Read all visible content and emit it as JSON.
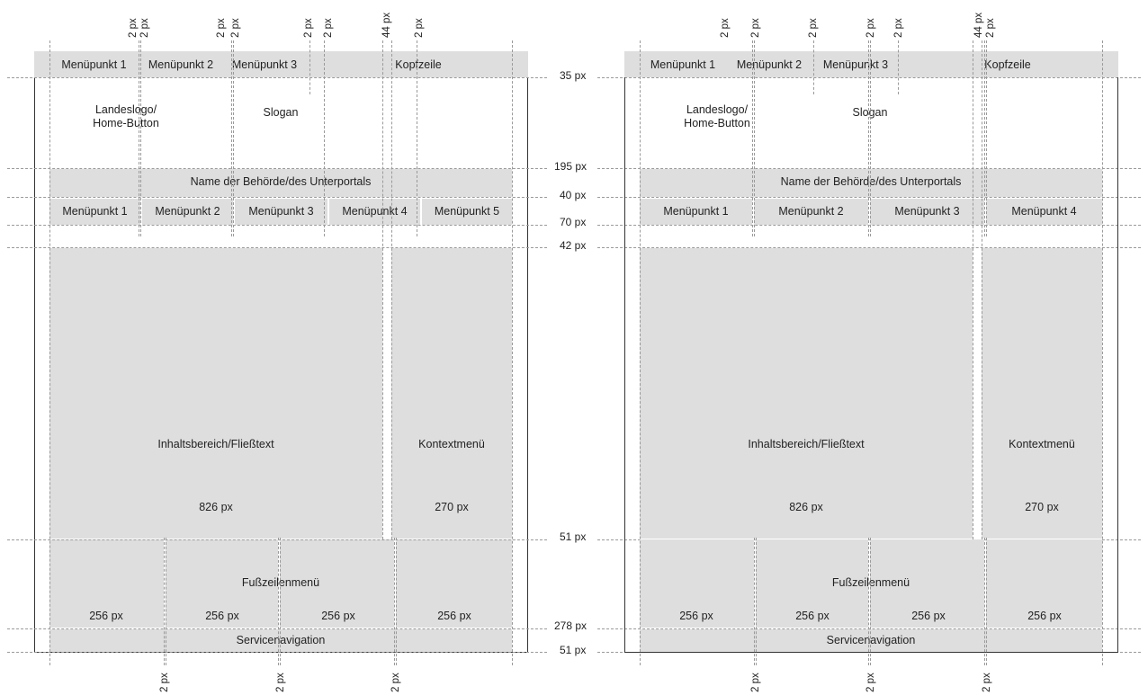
{
  "left": {
    "top_menu": [
      "Menüpunkt 1",
      "Menüpunkt 2",
      "Menüpunkt 3"
    ],
    "header": "Kopfzeile",
    "logo": [
      "Landeslogo/",
      "Home-Button"
    ],
    "slogan": "Slogan",
    "authority": "Name der Behörde/des Unterportals",
    "main_menu": [
      "Menüpunkt 1",
      "Menüpunkt 2",
      "Menüpunkt 3",
      "Menüpunkt 4",
      "Menüpunkt 5"
    ],
    "content": "Inhaltsbereich/Fließtext",
    "content_width": "826 px",
    "context": "Kontextmenü",
    "context_width": "270 px",
    "footer_menu": "Fußzeilenmenü",
    "footer_widths": [
      "256 px",
      "256 px",
      "256 px",
      "256 px"
    ],
    "service": "Servicenavigation",
    "top_marks": [
      "2 px",
      "2 px",
      "2 px",
      "2 px",
      "2 px",
      "2 px",
      "44 px",
      "2 px"
    ],
    "bottom_marks": [
      "2 px",
      "2 px",
      "2 px"
    ]
  },
  "right": {
    "top_menu": [
      "Menüpunkt 1",
      "Menüpunkt 2",
      "Menüpunkt 3"
    ],
    "header": "Kopfzeile",
    "logo": [
      "Landeslogo/",
      "Home-Button"
    ],
    "slogan": "Slogan",
    "authority": "Name der Behörde/des Unterportals",
    "main_menu": [
      "Menüpunkt 1",
      "Menüpunkt 2",
      "Menüpunkt 3",
      "Menüpunkt 4"
    ],
    "content": "Inhaltsbereich/Fließtext",
    "content_width": "826 px",
    "context": "Kontextmenü",
    "context_width": "270 px",
    "footer_menu": "Fußzeilenmenü",
    "footer_widths": [
      "256 px",
      "256 px",
      "256 px",
      "256 px"
    ],
    "service": "Servicenavigation",
    "top_marks": [
      "2 px",
      "2 px",
      "2 px",
      "2 px",
      "2 px",
      "44 px",
      "2 px"
    ],
    "bottom_marks": [
      "2 px",
      "2 px",
      "2 px"
    ]
  },
  "row_heights": [
    "35 px",
    "195 px",
    "40 px",
    "70 px",
    "42 px",
    "51 px",
    "278 px",
    "51 px"
  ]
}
